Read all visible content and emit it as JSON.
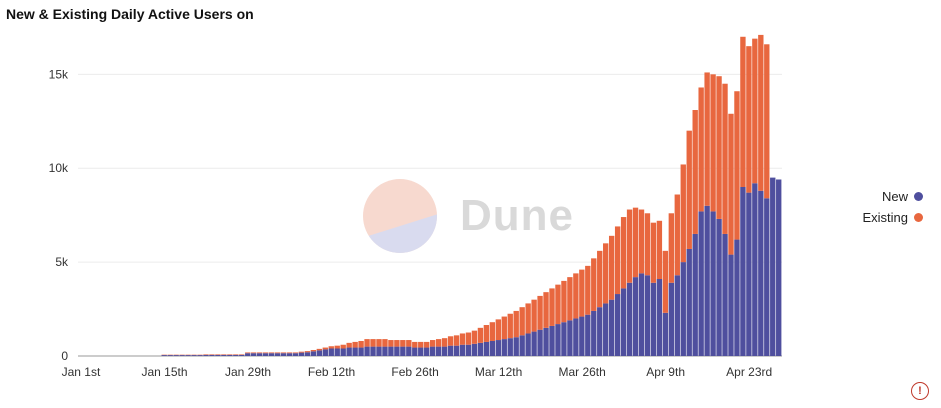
{
  "title": "New & Existing Daily Active Users on",
  "watermark": {
    "text": "Dune"
  },
  "legend": {
    "items": [
      {
        "label": "New",
        "color": "#4f4f9e"
      },
      {
        "label": "Existing",
        "color": "#e8673f"
      }
    ]
  },
  "alert_icon": "warning-circle-icon",
  "chart_data": {
    "type": "bar",
    "stacked": true,
    "title": "New & Existing Daily Active Users on",
    "xlabel": "",
    "ylabel": "",
    "ylim": [
      0,
      18000
    ],
    "y_ticks": [
      0,
      5000,
      10000,
      15000
    ],
    "y_tick_labels": [
      "0",
      "5k",
      "10k",
      "15k"
    ],
    "x_tick_labels": [
      "Jan 1st",
      "Jan 15th",
      "Jan 29th",
      "Feb 12th",
      "Feb 26th",
      "Mar 12th",
      "Mar 26th",
      "Apr 9th",
      "Apr 23rd"
    ],
    "x_tick_day_index": [
      0,
      14,
      28,
      42,
      56,
      70,
      84,
      98,
      112
    ],
    "grid": true,
    "legend_position": "right",
    "series": [
      {
        "name": "New",
        "color": "#4f4f9e",
        "values": [
          0,
          0,
          0,
          0,
          0,
          0,
          0,
          0,
          0,
          0,
          0,
          0,
          0,
          0,
          50,
          50,
          50,
          50,
          50,
          50,
          50,
          60,
          60,
          60,
          60,
          60,
          60,
          60,
          150,
          150,
          150,
          150,
          150,
          150,
          150,
          150,
          150,
          180,
          200,
          250,
          300,
          350,
          400,
          400,
          400,
          450,
          450,
          450,
          500,
          500,
          500,
          500,
          500,
          500,
          500,
          500,
          450,
          450,
          450,
          500,
          500,
          500,
          550,
          550,
          600,
          600,
          650,
          700,
          750,
          800,
          850,
          900,
          950,
          1000,
          1100,
          1200,
          1300,
          1400,
          1500,
          1600,
          1700,
          1800,
          1900,
          2000,
          2100,
          2200,
          2400,
          2600,
          2800,
          3000,
          3300,
          3600,
          3900,
          4200,
          4400,
          4300,
          3900,
          4100,
          2300,
          3900,
          4300,
          5000,
          5700,
          6500,
          7700,
          8000,
          7700,
          7300,
          6500,
          5400,
          6200,
          9000,
          8700,
          9200,
          8800,
          8400,
          9500,
          9400
        ]
      },
      {
        "name": "Existing",
        "color": "#e8673f",
        "values": [
          0,
          0,
          0,
          0,
          0,
          0,
          0,
          0,
          0,
          0,
          0,
          0,
          0,
          0,
          20,
          20,
          20,
          20,
          20,
          20,
          20,
          30,
          30,
          30,
          30,
          30,
          30,
          30,
          40,
          40,
          40,
          40,
          40,
          40,
          40,
          40,
          40,
          50,
          60,
          70,
          80,
          100,
          120,
          150,
          200,
          250,
          300,
          350,
          400,
          400,
          400,
          400,
          350,
          350,
          350,
          350,
          300,
          300,
          300,
          350,
          400,
          450,
          500,
          550,
          600,
          650,
          700,
          800,
          900,
          1000,
          1100,
          1200,
          1300,
          1400,
          1500,
          1600,
          1700,
          1800,
          1900,
          2000,
          2100,
          2200,
          2300,
          2400,
          2500,
          2600,
          2800,
          3000,
          3200,
          3400,
          3600,
          3800,
          3900,
          3700,
          3400,
          3300,
          3200,
          3100,
          3300,
          3700,
          4300,
          5200,
          6300,
          6600,
          6600,
          7100,
          7300,
          7600,
          8000,
          7500,
          7900,
          8000,
          7800,
          7700,
          8300,
          8200
        ]
      }
    ]
  }
}
